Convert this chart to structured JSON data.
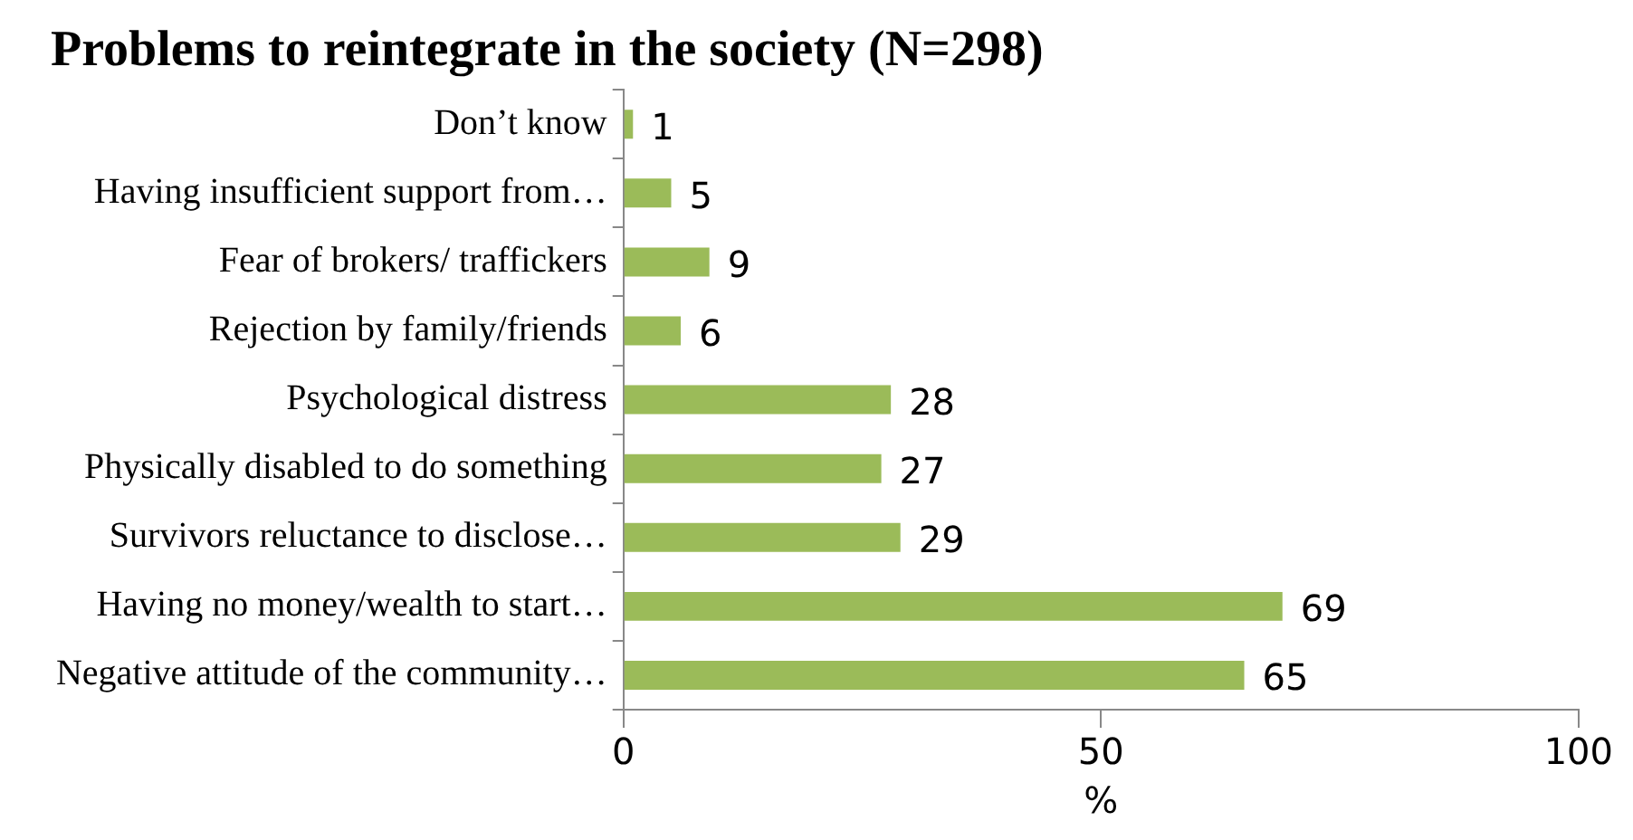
{
  "chart_data": {
    "type": "bar",
    "orientation": "horizontal",
    "title": "Problems to reintegrate in the society (N=298)",
    "xlabel": "%",
    "categories": [
      "Don’t know",
      "Having insufficient support from…",
      "Fear of brokers/ traffickers",
      "Rejection by family/friends",
      "Psychological distress",
      "Physically disabled to do something",
      "Survivors reluctance to disclose…",
      "Having no money/wealth to start…",
      "Negative attitude of the community…"
    ],
    "values": [
      1,
      5,
      9,
      6,
      28,
      27,
      29,
      69,
      65
    ],
    "color": "#9bbb59",
    "xlim": [
      0,
      100
    ],
    "xticks": [
      0,
      50,
      100
    ],
    "data_labels": true,
    "grid": false,
    "legend": false
  }
}
